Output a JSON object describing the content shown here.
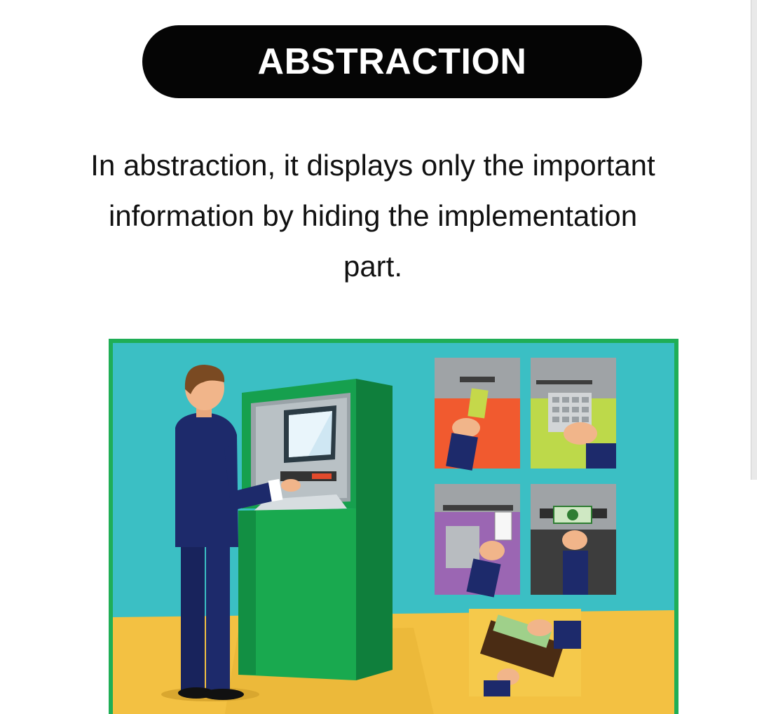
{
  "title": "ABSTRACTION",
  "description": {
    "line1": "In abstraction, it displays only the important",
    "line2": "information by hiding the implementation",
    "line3": "part."
  },
  "illustration": {
    "subject": "atm-user-icon",
    "steps": [
      "insert-card-icon",
      "enter-pin-icon",
      "receipt-icon",
      "cash-dispense-icon",
      "wallet-icon"
    ],
    "colors": {
      "border": "#1fae56",
      "wall": "#3bbfc4",
      "floor": "#f3c142",
      "atm": "#16a04e",
      "suit": "#1d2a6b",
      "step_red": "#f15a2f",
      "step_lime": "#bdd94a",
      "step_purple": "#9b66b3",
      "step_dark": "#3d3d3d",
      "step_yellow": "#f5c94b"
    }
  }
}
